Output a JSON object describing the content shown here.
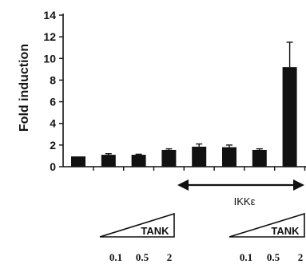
{
  "chart_data": {
    "type": "bar",
    "title": "",
    "ylabel": "Fold induction",
    "xlabel": "",
    "ylim": [
      0,
      14
    ],
    "yticks": [
      0,
      2,
      4,
      6,
      8,
      10,
      12,
      14
    ],
    "grid": false,
    "legend": "none",
    "bar_color": "#111111",
    "values": [
      0.95,
      1.1,
      1.1,
      1.55,
      1.85,
      1.8,
      1.55,
      9.2
    ],
    "errors": [
      0,
      0.1,
      0.05,
      0.1,
      0.25,
      0.2,
      0.1,
      2.3
    ]
  },
  "annotations": {
    "ikk_label": "IKKε",
    "tank_left": {
      "label": "TANK",
      "doses": [
        "0.1",
        "0.5",
        "2"
      ]
    },
    "tank_right": {
      "label": "TANK",
      "doses": [
        "0.1",
        "0.5",
        "2"
      ]
    }
  }
}
